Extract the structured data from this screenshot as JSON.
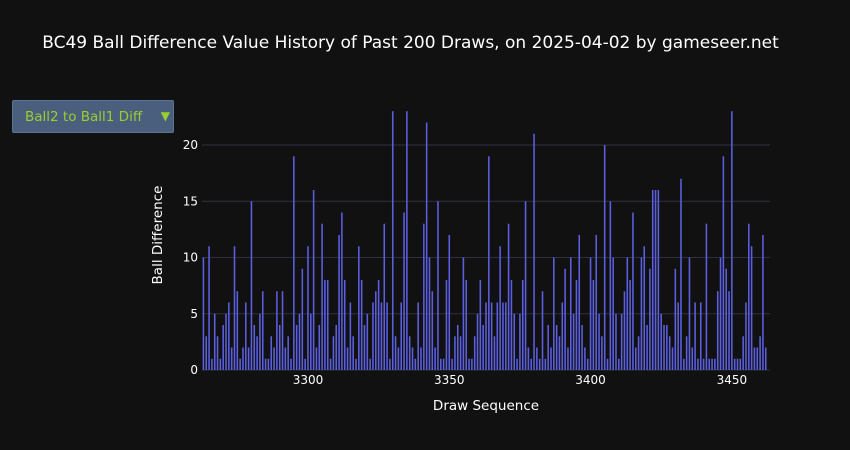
{
  "header": {
    "title": "BC49 Ball Difference Value History of Past 200 Draws, on 2025-04-02 by gameseer.net"
  },
  "controls": {
    "selected_option": "Ball2 to Ball1 Diff",
    "arrow_icon": "triangle-down-icon"
  },
  "colors": {
    "background": "#111111",
    "bar": "#5b5fe0",
    "grid": "#2e3042",
    "accent": "#9acd32"
  },
  "chart_data": {
    "type": "bar",
    "title": "BC49 Ball Difference Value History of Past 200 Draws, on 2025-04-02 by gameseer.net",
    "xlabel": "Draw Sequence",
    "ylabel": "Ball Difference",
    "x_start": 3263,
    "xlim": [
      3262.5,
      3463.5
    ],
    "ylim": [
      0,
      24
    ],
    "xticks": [
      3300,
      3350,
      3400,
      3450
    ],
    "yticks": [
      0,
      5,
      10,
      15,
      20
    ],
    "grid": true,
    "values": [
      10,
      3,
      11,
      1,
      5,
      3,
      1,
      4,
      5,
      6,
      2,
      11,
      7,
      1,
      2,
      6,
      2,
      15,
      4,
      3,
      5,
      7,
      1,
      1,
      3,
      2,
      7,
      4,
      7,
      2,
      3,
      1,
      19,
      4,
      5,
      9,
      1,
      11,
      5,
      16,
      2,
      4,
      13,
      8,
      8,
      1,
      3,
      4,
      12,
      14,
      8,
      2,
      6,
      3,
      1,
      11,
      8,
      4,
      5,
      1,
      6,
      7,
      8,
      6,
      13,
      6,
      1,
      23,
      3,
      2,
      6,
      14,
      23,
      3,
      2,
      1,
      6,
      2,
      13,
      22,
      10,
      7,
      2,
      15,
      1,
      1,
      8,
      12,
      1,
      3,
      4,
      3,
      10,
      8,
      1,
      1,
      3,
      5,
      8,
      4,
      6,
      19,
      6,
      3,
      6,
      11,
      6,
      6,
      13,
      8,
      5,
      1,
      5,
      8,
      15,
      2,
      1,
      21,
      2,
      1,
      7,
      1,
      4,
      2,
      10,
      4,
      3,
      6,
      9,
      2,
      10,
      5,
      8,
      12,
      4,
      2,
      1,
      10,
      8,
      12,
      5,
      3,
      20,
      1,
      15,
      10,
      5,
      1,
      5,
      7,
      10,
      8,
      14,
      2,
      3,
      10,
      11,
      4,
      9,
      16,
      16,
      16,
      5,
      4,
      4,
      3,
      2,
      9,
      6,
      17,
      1,
      3,
      10,
      2,
      6,
      1,
      6,
      1,
      13,
      1,
      1,
      1,
      7,
      10,
      19,
      9,
      7,
      23,
      1,
      1,
      1,
      3,
      6,
      13,
      11,
      2,
      2,
      3,
      12,
      2
    ]
  }
}
